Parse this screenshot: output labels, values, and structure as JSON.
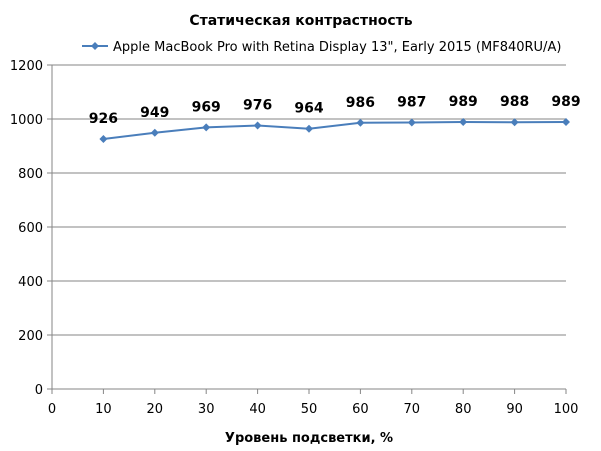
{
  "chart_data": {
    "type": "line",
    "title": "Статическая контрастность",
    "xlabel": "Уровень подсветки, %",
    "ylabel": "",
    "xlim": [
      0,
      100
    ],
    "ylim": [
      0,
      1200
    ],
    "x_ticks": [
      0,
      10,
      20,
      30,
      40,
      50,
      60,
      70,
      80,
      90,
      100
    ],
    "y_ticks": [
      0,
      200,
      400,
      600,
      800,
      1000,
      1200
    ],
    "grid": "horizontal",
    "legend_position": "top",
    "series": [
      {
        "name": "Apple MacBook Pro with Retina Display 13\", Early 2015 (MF840RU/A)",
        "color": "#4a7ebb",
        "marker": "diamond",
        "x": [
          10,
          20,
          30,
          40,
          50,
          60,
          70,
          80,
          90,
          100
        ],
        "values": [
          926,
          949,
          969,
          976,
          964,
          986,
          987,
          989,
          988,
          989
        ],
        "labels": [
          "926",
          "949",
          "969",
          "976",
          "964",
          "986",
          "987",
          "989",
          "988",
          "989"
        ]
      }
    ]
  }
}
